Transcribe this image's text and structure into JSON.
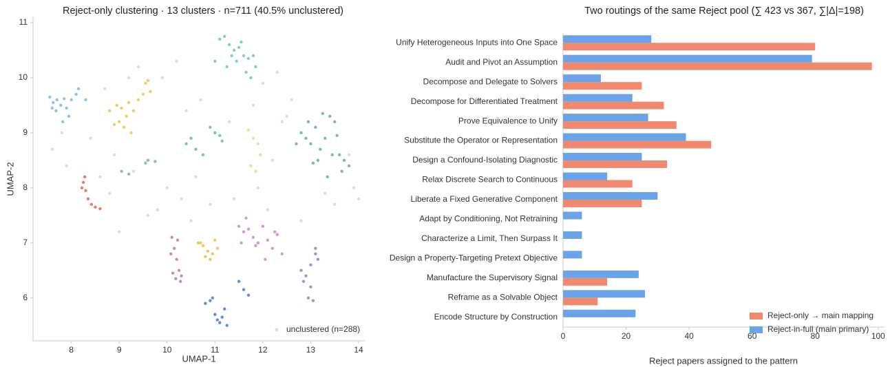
{
  "chart_data": [
    {
      "type": "scatter",
      "title": "Reject-only clustering · 13 clusters · n=711 (40.5% unclustered)",
      "xlabel": "UMAP-1",
      "ylabel": "UMAP-2",
      "xlim": [
        7.2,
        14.13
      ],
      "xticks": [
        8,
        9,
        10,
        11,
        12,
        13,
        14
      ],
      "ylim": [
        5.22,
        11.1
      ],
      "yticks": [
        6,
        7,
        8,
        9,
        10,
        11
      ],
      "legend": "lower right",
      "series": [
        {
          "color": "#dcdcdc",
          "name": "unclustered (n=288)",
          "x": [
            7.6,
            7.9,
            8.4,
            8.6,
            8.8,
            9.3,
            9.8,
            10.0,
            10.3,
            10.6,
            11.9,
            12.2,
            12.4,
            12.6,
            13.5,
            13.9,
            14.0,
            7.8,
            8.7,
            9.4,
            9.9,
            10.4,
            10.7,
            11.3,
            12.0,
            12.5,
            13.3,
            13.8,
            9.0,
            9.6,
            10.5,
            11.4,
            12.1,
            12.8,
            9.2,
            10.2,
            11.8,
            12.3,
            8.9,
            10.9
          ],
          "y": [
            8.7,
            8.4,
            8.9,
            8.2,
            7.9,
            8.3,
            7.6,
            8.0,
            7.8,
            8.2,
            8.0,
            8.5,
            9.2,
            9.6,
            7.7,
            8.0,
            7.8,
            9.0,
            9.8,
            10.2,
            10.0,
            9.4,
            9.6,
            9.2,
            9.9,
            9.3,
            7.9,
            8.6,
            7.2,
            7.5,
            7.4,
            7.8,
            7.6,
            7.4,
            10.0,
            10.3,
            9.5,
            10.1,
            8.6,
            7.7
          ]
        },
        {
          "color": "#8ec3e6",
          "x": [
            7.55,
            7.62,
            7.7,
            7.78,
            7.85,
            7.9,
            8.0,
            8.1,
            7.68,
            7.95,
            8.15,
            7.6,
            7.82,
            8.3
          ],
          "y": [
            9.65,
            9.55,
            9.6,
            9.5,
            9.62,
            9.45,
            9.6,
            9.7,
            9.4,
            9.3,
            9.8,
            9.45,
            9.2,
            9.6
          ]
        },
        {
          "color": "#f5cc5b",
          "x": [
            8.8,
            8.95,
            9.05,
            9.15,
            9.2,
            9.3,
            9.1,
            9.0,
            9.55,
            9.6,
            9.65,
            9.4,
            9.25,
            8.9,
            9.5
          ],
          "y": [
            9.4,
            9.5,
            9.45,
            9.3,
            9.55,
            9.4,
            9.1,
            9.2,
            9.9,
            9.95,
            9.75,
            9.6,
            9.0,
            9.15,
            9.7
          ]
        },
        {
          "color": "#7fd1c1",
          "x": [
            11.1,
            11.2,
            11.3,
            11.4,
            11.5,
            11.6,
            11.7,
            11.8,
            11.25,
            11.45,
            11.65,
            11.75,
            11.55,
            11.35,
            11.0,
            11.85
          ],
          "y": [
            10.7,
            10.75,
            10.6,
            10.5,
            10.55,
            10.4,
            10.35,
            10.4,
            10.2,
            10.3,
            10.1,
            10.0,
            10.65,
            10.4,
            10.3,
            10.2
          ]
        },
        {
          "color": "#76c194",
          "x": [
            12.8,
            12.9,
            13.0,
            13.1,
            13.2,
            13.3,
            13.4,
            13.5,
            13.6,
            13.7,
            13.8,
            13.15,
            13.35,
            13.55,
            12.95,
            13.25,
            13.45,
            13.65,
            12.7,
            13.05
          ],
          "y": [
            9.0,
            8.9,
            8.8,
            9.1,
            8.7,
            8.9,
            9.3,
            9.2,
            8.6,
            8.5,
            8.4,
            8.5,
            8.2,
            8.95,
            9.2,
            9.35,
            8.6,
            8.3,
            8.8,
            8.45
          ]
        },
        {
          "color": "#e97c63",
          "x": [
            8.22,
            8.3,
            8.28,
            8.35,
            8.42,
            8.5,
            8.6,
            8.25
          ],
          "y": [
            8.0,
            7.95,
            8.2,
            7.8,
            7.7,
            7.65,
            7.62,
            8.1
          ]
        },
        {
          "color": "#c98ab8",
          "x": [
            10.1,
            10.15,
            10.2,
            10.25,
            10.3,
            10.12,
            10.18,
            10.28,
            10.08,
            10.22
          ],
          "y": [
            7.1,
            6.9,
            6.7,
            6.5,
            6.4,
            6.45,
            6.35,
            6.3,
            6.8,
            7.05
          ]
        },
        {
          "color": "#f2c75c",
          "x": [
            10.65,
            10.75,
            10.85,
            10.95,
            11.05,
            10.8,
            10.9,
            11.0,
            10.7
          ],
          "y": [
            7.0,
            6.95,
            6.85,
            6.8,
            6.9,
            6.75,
            6.7,
            7.05,
            7.0
          ]
        },
        {
          "color": "#d49ad4",
          "x": [
            11.5,
            11.6,
            11.7,
            11.8,
            11.9,
            12.0,
            12.1,
            12.2,
            12.3,
            12.4,
            11.65,
            11.85,
            12.05,
            12.25,
            11.55
          ],
          "y": [
            7.3,
            7.2,
            7.25,
            7.1,
            7.0,
            7.3,
            7.05,
            6.9,
            7.15,
            6.8,
            7.45,
            6.95,
            6.7,
            7.2,
            7.0
          ]
        },
        {
          "color": "#a58fdc",
          "x": [
            12.8,
            12.9,
            13.0,
            13.1,
            13.15,
            12.95,
            13.05,
            12.85,
            13.0,
            13.1
          ],
          "y": [
            6.5,
            6.4,
            6.6,
            6.9,
            6.7,
            6.0,
            5.95,
            6.3,
            6.2,
            6.8
          ]
        },
        {
          "color": "#5b8de0",
          "x": [
            10.8,
            10.9,
            11.0,
            11.05,
            11.1,
            11.15,
            11.2,
            11.25,
            10.95,
            11.6,
            11.7,
            11.5
          ],
          "y": [
            5.9,
            5.95,
            5.7,
            5.6,
            5.55,
            5.65,
            5.8,
            5.5,
            6.0,
            6.15,
            6.05,
            6.3
          ]
        },
        {
          "color": "#78c9a8",
          "x": [
            10.4,
            10.5,
            10.6,
            10.9,
            11.0,
            11.1,
            11.15,
            10.75
          ],
          "y": [
            8.8,
            8.9,
            8.7,
            9.1,
            9.0,
            8.95,
            8.85,
            8.6
          ]
        },
        {
          "color": "#f1dca0",
          "x": [
            11.7,
            11.8,
            11.9,
            11.95,
            11.75,
            11.85
          ],
          "y": [
            9.05,
            8.9,
            8.8,
            8.6,
            8.4,
            8.3
          ]
        },
        {
          "color": "#82c79c",
          "x": [
            9.05,
            9.2,
            9.55,
            9.6,
            9.75
          ],
          "y": [
            8.3,
            8.25,
            8.45,
            8.5,
            8.48
          ]
        }
      ]
    },
    {
      "type": "barh",
      "title": "Two routings of the same Reject pool (∑ 423 vs 367, ∑|Δ|=198)",
      "xlabel": "Reject papers assigned to the pattern",
      "xlim": [
        0,
        102
      ],
      "xticks": [
        0,
        20,
        40,
        60,
        80,
        100
      ],
      "legend": "lower right",
      "categories": [
        "Unify Heterogeneous Inputs into One Space",
        "Audit and Pivot an Assumption",
        "Decompose and Delegate to Solvers",
        "Decompose for Differentiated Treatment",
        "Prove Equivalence to Unify",
        "Substitute the Operator or Representation",
        "Design a Confound-Isolating Diagnostic",
        "Relax Discrete Search to Continuous",
        "Liberate a Fixed Generative Component",
        "Adapt by Conditioning, Not Retraining",
        "Characterize a Limit, Then Surpass It",
        "Design a Property-Targeting Pretext Objective",
        "Manufacture the Supervisory Signal",
        "Reframe as a Solvable Object",
        "Encode Structure by Construction"
      ],
      "series": [
        {
          "name": "Reject-only → main mapping",
          "color": "#f0896e",
          "values": [
            80,
            98,
            25,
            32,
            36,
            47,
            33,
            22,
            25,
            0,
            0,
            0,
            14,
            11,
            0
          ]
        },
        {
          "name": "Reject-in-full (main primary)",
          "color": "#6aa3e8",
          "values": [
            28,
            79,
            12,
            22,
            27,
            39,
            25,
            14,
            30,
            6,
            6,
            6,
            24,
            26,
            23
          ]
        }
      ]
    }
  ]
}
